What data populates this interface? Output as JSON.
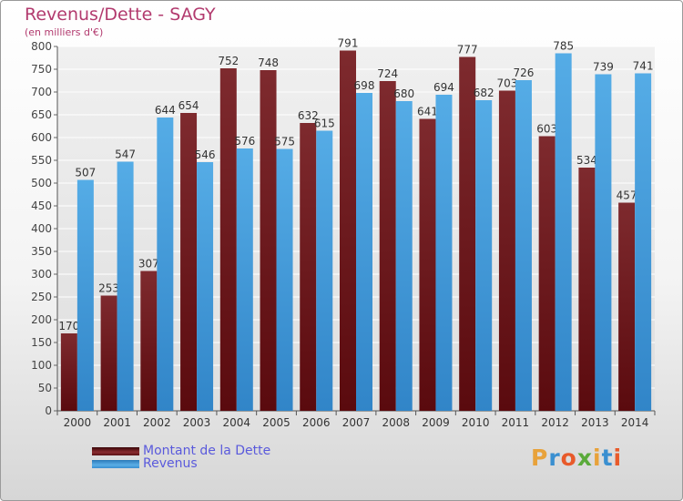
{
  "title": "Revenus/Dette - SAGY",
  "subtitle": "(en milliers d'€)",
  "logo_text": "Proxiti",
  "colors": {
    "debt": "#7a1e22",
    "revenue": "#4aa2e0",
    "title": "#b23a6e",
    "legend_text": "#5a5adc"
  },
  "chart_data": {
    "type": "bar",
    "title": "Revenus/Dette - SAGY",
    "subtitle": "(en milliers d'€)",
    "categories": [
      "2000",
      "2001",
      "2002",
      "2003",
      "2004",
      "2005",
      "2006",
      "2007",
      "2008",
      "2009",
      "2010",
      "2011",
      "2012",
      "2013",
      "2014"
    ],
    "series": [
      {
        "name": "Montant de la Dette",
        "values": [
          170,
          253,
          307,
          654,
          752,
          748,
          632,
          791,
          724,
          641,
          777,
          703,
          603,
          534,
          457
        ]
      },
      {
        "name": "Revenus",
        "values": [
          507,
          547,
          644,
          546,
          576,
          575,
          615,
          698,
          680,
          694,
          682,
          726,
          785,
          739,
          741
        ]
      }
    ],
    "ylim": [
      0,
      800
    ],
    "yticks": [
      0,
      50,
      100,
      150,
      200,
      250,
      300,
      350,
      400,
      450,
      500,
      550,
      600,
      650,
      700,
      750,
      800
    ],
    "grid": true,
    "legend_position": "bottom-left"
  }
}
